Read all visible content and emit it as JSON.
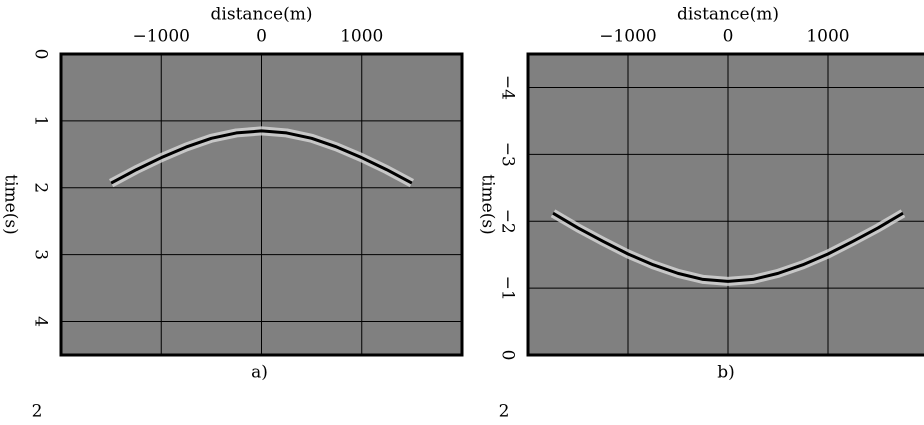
{
  "chart_data": [
    {
      "type": "line",
      "caption": "a)",
      "xlabel": "distance(m)",
      "ylabel": "time(s)",
      "annotation": "2",
      "x": [
        -1500,
        -1250,
        -1000,
        -750,
        -500,
        -250,
        0,
        250,
        500,
        750,
        1000,
        1250,
        1500
      ],
      "values": [
        1.93,
        1.73,
        1.55,
        1.39,
        1.26,
        1.18,
        1.15,
        1.18,
        1.26,
        1.39,
        1.55,
        1.73,
        1.93
      ],
      "color": "#000000",
      "xlim": [
        -2000,
        2000
      ],
      "xticks": [
        {
          "value": -1000,
          "label": "−1000"
        },
        0,
        1000
      ],
      "ylim": [
        0,
        4.5
      ],
      "yticks": [
        0,
        1,
        2,
        3,
        4
      ],
      "grid": true
    },
    {
      "type": "line",
      "caption": "b)",
      "xlabel": "distance(m)",
      "ylabel": "time(s)",
      "annotation": "2",
      "x": [
        -1750,
        -1500,
        -1250,
        -1000,
        -750,
        -500,
        -250,
        0,
        250,
        500,
        750,
        1000,
        1250,
        1500,
        1750
      ],
      "values": [
        -2.12,
        -1.9,
        -1.7,
        -1.51,
        -1.35,
        -1.22,
        -1.13,
        -1.1,
        -1.13,
        -1.22,
        -1.35,
        -1.51,
        -1.7,
        -1.9,
        -2.12
      ],
      "color": "#000000",
      "xlim": [
        -2000,
        2000
      ],
      "xticks": [
        {
          "value": -1000,
          "label": "−1000"
        },
        0,
        1000
      ],
      "ylim": [
        -4.5,
        0
      ],
      "yticks": [
        {
          "value": -4,
          "label": "−4"
        },
        {
          "value": -3,
          "label": "−3"
        },
        {
          "value": -2,
          "label": "−2"
        },
        {
          "value": -1,
          "label": "−1"
        },
        0
      ],
      "grid": true
    }
  ]
}
